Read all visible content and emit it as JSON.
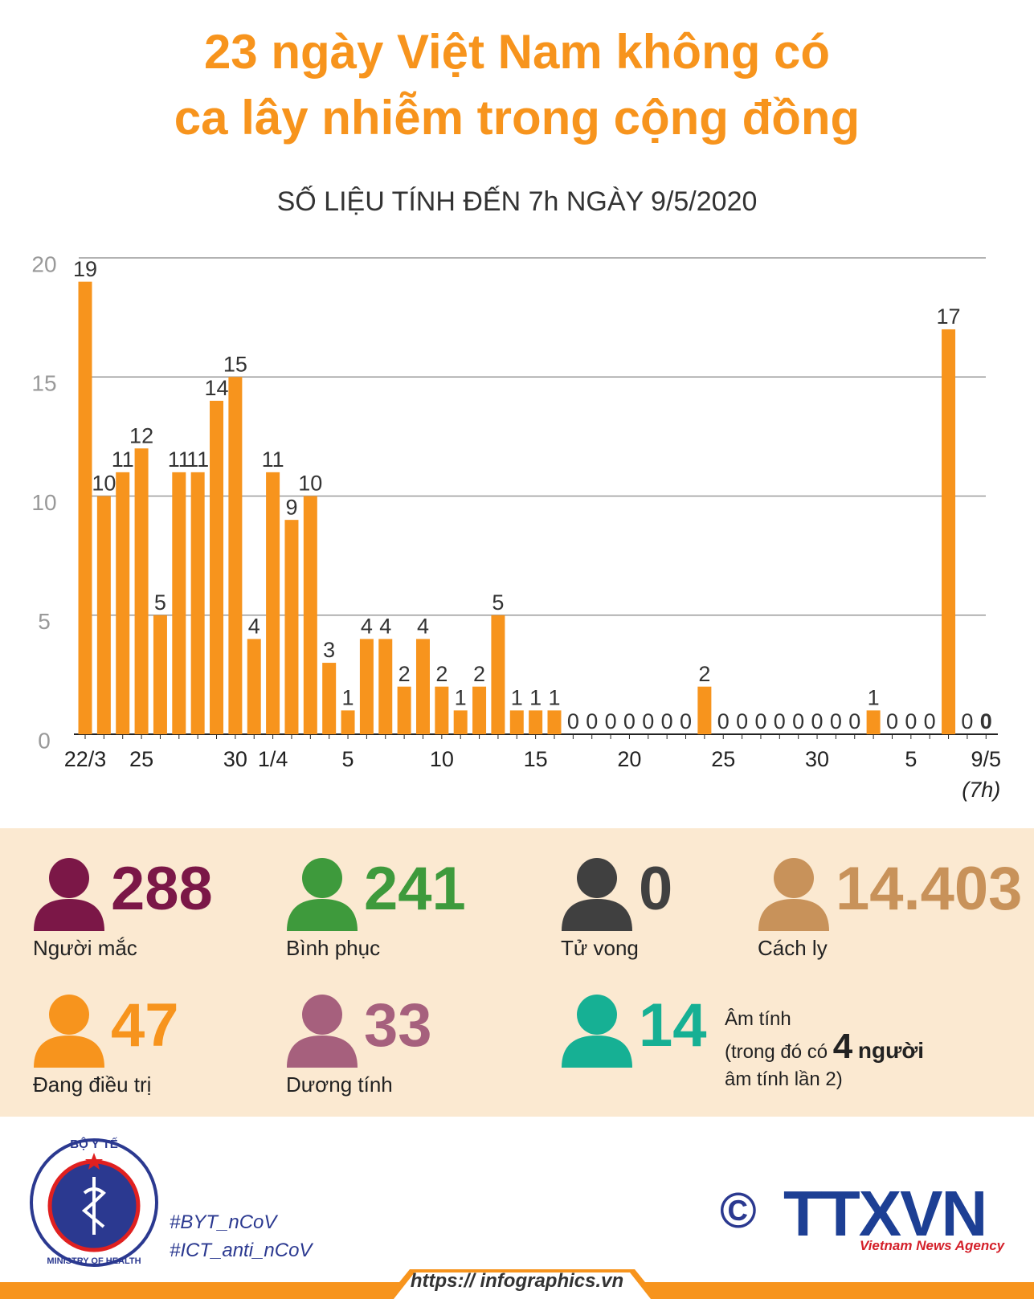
{
  "header": {
    "title_line1": "23 ngày Việt Nam không có",
    "title_line2": "ca lây nhiễm trong cộng đồng",
    "subtitle": "SỐ LIỆU TÍNH ĐẾN 7h NGÀY 9/5/2020"
  },
  "chart_data": {
    "type": "bar",
    "color": "#f7941d",
    "grid": true,
    "categories": [
      "22/3",
      null,
      null,
      "25",
      null,
      null,
      null,
      null,
      "30",
      null,
      "1/4",
      null,
      null,
      null,
      "5",
      null,
      null,
      null,
      null,
      "10",
      null,
      null,
      null,
      null,
      "15",
      null,
      null,
      null,
      null,
      "20",
      null,
      null,
      null,
      null,
      "25",
      null,
      null,
      null,
      null,
      "30",
      null,
      null,
      null,
      null,
      "5",
      null,
      null,
      null,
      "9/5"
    ],
    "values": [
      19,
      10,
      11,
      12,
      5,
      11,
      11,
      14,
      15,
      4,
      11,
      9,
      10,
      3,
      1,
      4,
      4,
      2,
      4,
      2,
      1,
      2,
      5,
      1,
      1,
      1,
      0,
      0,
      0,
      0,
      0,
      0,
      0,
      2,
      0,
      0,
      0,
      0,
      0,
      0,
      0,
      0,
      1,
      0,
      0,
      0,
      17,
      0,
      0
    ],
    "ylim": [
      0,
      20
    ],
    "yticks": [
      0,
      5,
      10,
      15,
      20
    ],
    "annotation": "(7h)"
  },
  "stats": [
    {
      "value": "288",
      "label": "Người mắc",
      "color": "#7b1747"
    },
    {
      "value": "241",
      "label": "Bình phục",
      "color": "#3e9a3c"
    },
    {
      "value": "0",
      "label": "Tử vong",
      "color": "#404040"
    },
    {
      "value": "14.403",
      "label": "Cách ly",
      "color": "#c8925a"
    },
    {
      "value": "47",
      "label": "Đang điều trị",
      "color": "#f7941d"
    },
    {
      "value": "33",
      "label": "Dương tính",
      "color": "#a6607d"
    },
    {
      "value": "14",
      "label": "Âm tính",
      "color": "#16b094"
    }
  ],
  "negative_note": {
    "before": "(trong đó có",
    "count": "4",
    "after": "người",
    "line3": "âm tính lần 2)"
  },
  "footer": {
    "ministry_top": "BỘ Y TẾ",
    "ministry_bottom": "MINISTRY OF HEALTH",
    "hashtags": [
      "#BYT_nCoV",
      "#ICT_anti_nCoV"
    ],
    "copyright": "©",
    "agency": "TTXVN",
    "agency_sub": "Vietnam News Agency",
    "url": "https:// infographics.vn"
  }
}
